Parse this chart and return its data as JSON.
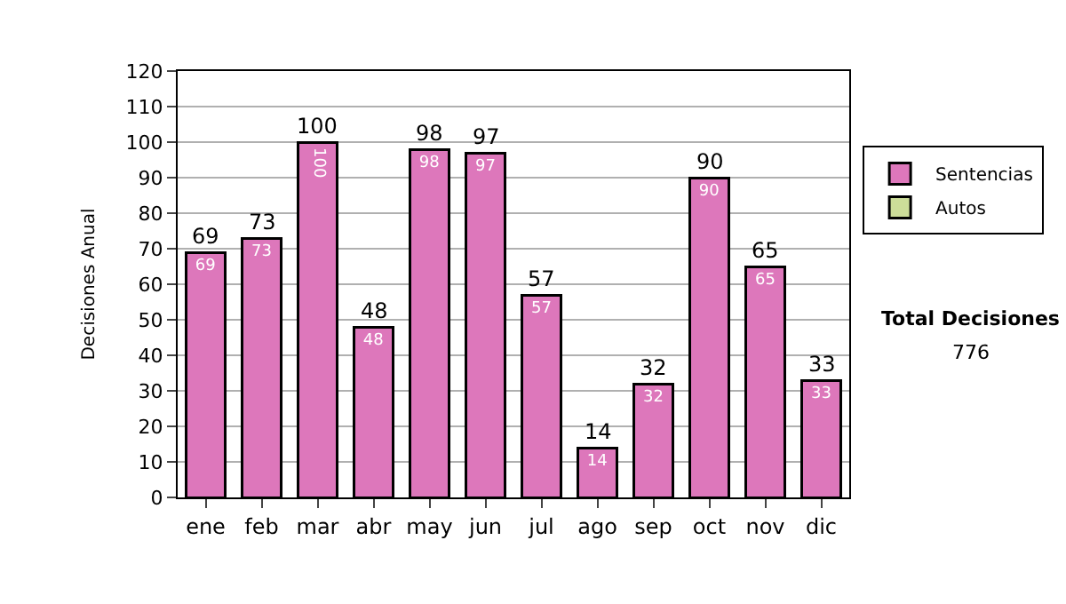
{
  "chart_data": {
    "type": "bar",
    "ylabel": "Decisiones Anual",
    "categories": [
      "ene",
      "feb",
      "mar",
      "abr",
      "may",
      "jun",
      "jul",
      "ago",
      "sep",
      "oct",
      "nov",
      "dic"
    ],
    "series": [
      {
        "name": "Sentencias",
        "color": "#dd77bb",
        "values": [
          69,
          73,
          100,
          48,
          98,
          97,
          57,
          14,
          32,
          90,
          65,
          33
        ]
      },
      {
        "name": "Autos",
        "color": "#ccdd99",
        "values": [
          null,
          null,
          null,
          null,
          null,
          null,
          null,
          null,
          null,
          null,
          null,
          null
        ]
      }
    ],
    "stacked": true,
    "data_labels": true,
    "totals": [
      "69",
      "73",
      "100",
      "48",
      "98",
      "97",
      "57",
      "14",
      "32",
      "90",
      "65",
      "33"
    ],
    "ylim": [
      0,
      120
    ],
    "yticks": [
      0,
      10,
      20,
      30,
      40,
      50,
      60,
      70,
      80,
      90,
      100,
      110,
      120
    ],
    "grid": "y",
    "legend": "right",
    "annotations": [
      "Total Decisiones",
      "776"
    ]
  }
}
